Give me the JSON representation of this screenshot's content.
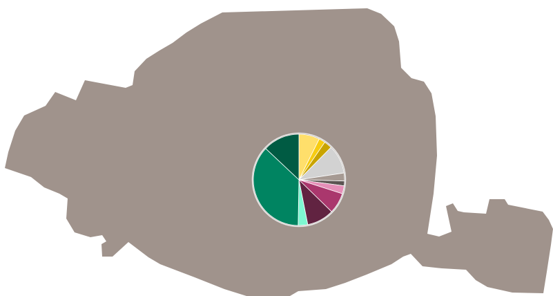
{
  "map": {
    "region_fill": "#a0938c",
    "background": "#ffffff"
  },
  "chart_data": {
    "type": "pie",
    "slice_border": "#ffffff",
    "ring_color": "#e8e8e8",
    "slices": [
      {
        "value": 6.5,
        "color": "#ffdf6b"
      },
      {
        "value": 2.0,
        "color": "#f7cc12"
      },
      {
        "value": 2.5,
        "color": "#c9a400"
      },
      {
        "value": 9.0,
        "color": "#d2d2d2"
      },
      {
        "value": 2.5,
        "color": "#a69a93"
      },
      {
        "value": 1.5,
        "color": "#5b5452"
      },
      {
        "value": 2.5,
        "color": "#e58fb8"
      },
      {
        "value": 6.5,
        "color": "#aa376d"
      },
      {
        "value": 8.5,
        "color": "#612341"
      },
      {
        "value": 3.0,
        "color": "#7ef7d1"
      },
      {
        "value": 32.5,
        "color": "#008461"
      },
      {
        "value": 11.5,
        "color": "#005b43"
      }
    ]
  }
}
